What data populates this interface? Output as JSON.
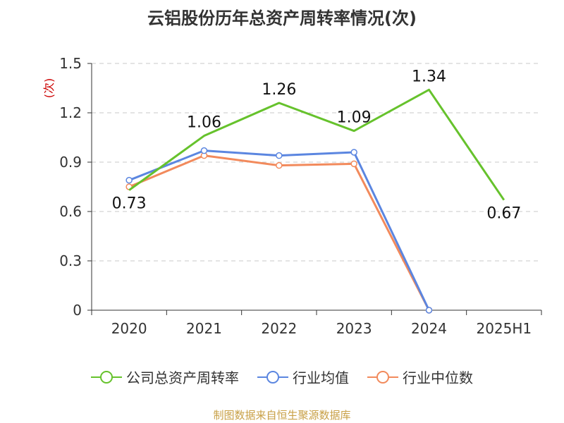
{
  "title": "云铝股份历年总资产周转率情况(次)",
  "source": "制图数据来自恒生聚源数据库",
  "colors": {
    "company": "#66c22c",
    "industry_avg": "#5b86e0",
    "industry_median": "#f28a5c",
    "ylabel": "#cc0000"
  },
  "chart_data": {
    "type": "line",
    "title": "云铝股份历年总资产周转率情况(次)",
    "xlabel": "",
    "ylabel": "(次)",
    "categories": [
      "2020",
      "2021",
      "2022",
      "2023",
      "2024",
      "2025H1"
    ],
    "ylim": [
      0,
      1.5
    ],
    "yticks": [
      "0",
      "0.3",
      "0.6",
      "0.9",
      "1.2",
      "1.5"
    ],
    "grid": true,
    "legend_position": "bottom",
    "series": [
      {
        "name": "公司总资产周转率",
        "values": [
          0.73,
          1.06,
          1.26,
          1.09,
          1.34,
          0.67
        ],
        "labels": [
          "0.73",
          "1.06",
          "1.26",
          "1.09",
          "1.34",
          "0.67"
        ],
        "color": "#66c22c"
      },
      {
        "name": "行业均值",
        "values": [
          0.79,
          0.97,
          0.94,
          0.96,
          0.0,
          null
        ],
        "color": "#5b86e0"
      },
      {
        "name": "行业中位数",
        "values": [
          0.75,
          0.94,
          0.88,
          0.89,
          0.0,
          null
        ],
        "color": "#f28a5c"
      }
    ]
  },
  "legend": [
    {
      "label": "公司总资产周转率",
      "color": "#66c22c"
    },
    {
      "label": "行业均值",
      "color": "#5b86e0"
    },
    {
      "label": "行业中位数",
      "color": "#f28a5c"
    }
  ]
}
